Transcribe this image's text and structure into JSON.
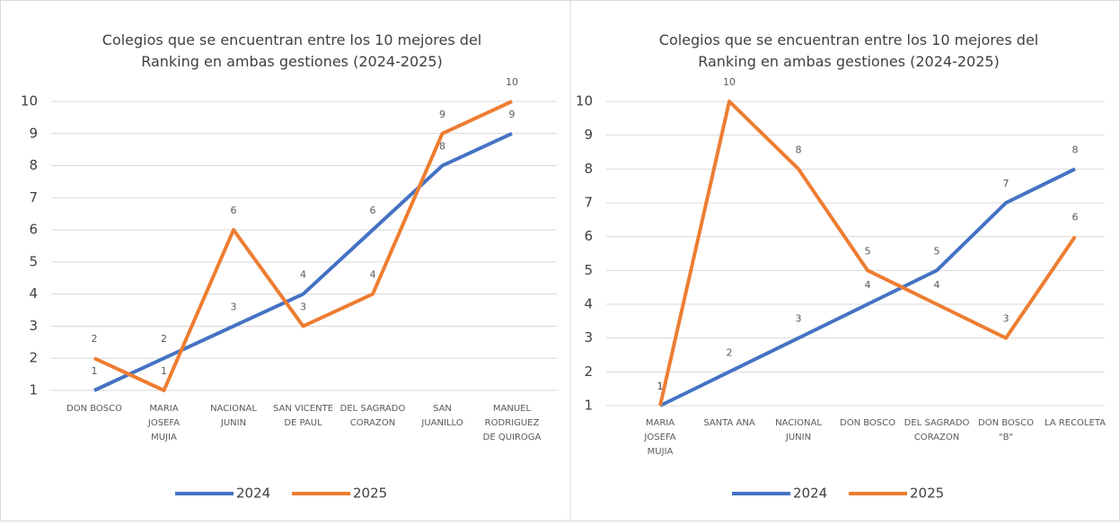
{
  "chart_data": [
    {
      "type": "line",
      "title": "Colegios que se encuentran entre los 10 mejores del Ranking en ambas gestiones (2024-2025)",
      "categories": [
        "DON BOSCO",
        "MARIA JOSEFA MUJIA",
        "NACIONAL JUNIN",
        "SAN VICENTE DE PAUL",
        "DEL SAGRADO CORAZON",
        "SAN JUANILLO",
        "MANUEL RODRIGUEZ DE QUIROGA"
      ],
      "series": [
        {
          "name": "2024",
          "color": "#4472c4",
          "values": [
            1,
            2,
            3,
            4,
            6,
            8,
            9
          ]
        },
        {
          "name": "2025",
          "color": "#ed7d31",
          "values": [
            2,
            1,
            6,
            3,
            4,
            9,
            10
          ]
        }
      ],
      "ylim": [
        1,
        10
      ],
      "yticks": [
        1,
        2,
        3,
        4,
        5,
        6,
        7,
        8,
        9,
        10
      ],
      "grid": true,
      "legend": "bottom"
    },
    {
      "type": "line",
      "title": "Colegios que se encuentran entre los 10 mejores del Ranking en ambas gestiones (2024-2025)",
      "categories": [
        "MARIA JOSEFA MUJIA",
        "SANTA ANA",
        "NACIONAL JUNIN",
        "DON BOSCO",
        "DEL SAGRADO CORAZON",
        "DON BOSCO \"B\"",
        "LA RECOLETA"
      ],
      "series": [
        {
          "name": "2024",
          "color": "#4472c4",
          "values": [
            1,
            2,
            3,
            4,
            5,
            7,
            8
          ]
        },
        {
          "name": "2025",
          "color": "#ed7d31",
          "values": [
            1,
            10,
            8,
            5,
            4,
            3,
            6
          ]
        }
      ],
      "ylim": [
        1,
        10
      ],
      "yticks": [
        1,
        2,
        3,
        4,
        5,
        6,
        7,
        8,
        9,
        10
      ],
      "grid": true,
      "legend": "bottom"
    }
  ]
}
